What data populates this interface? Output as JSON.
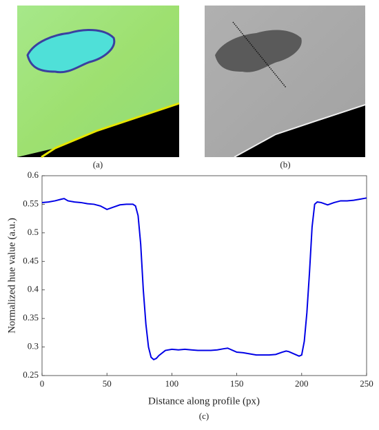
{
  "figure": {
    "panel_labels": [
      "(a)",
      "(b)"
    ]
  },
  "chart_data": {
    "type": "line",
    "caption": "(c)",
    "x_label": "Distance along profile (px)",
    "y_label": "Normalized hue value (a.u.)",
    "x": [
      0,
      5,
      10,
      15,
      17,
      20,
      25,
      30,
      35,
      40,
      45,
      50,
      55,
      60,
      65,
      70,
      72,
      74,
      76,
      78,
      80,
      82,
      84,
      86,
      88,
      90,
      95,
      100,
      105,
      110,
      115,
      120,
      125,
      130,
      135,
      140,
      143,
      145,
      150,
      155,
      160,
      165,
      170,
      175,
      180,
      185,
      188,
      190,
      195,
      198,
      200,
      202,
      204,
      206,
      208,
      210,
      212,
      215,
      220,
      225,
      230,
      235,
      240,
      245,
      250
    ],
    "series": [
      {
        "color": "#0000e6",
        "values": [
          0.553,
          0.554,
          0.556,
          0.559,
          0.56,
          0.556,
          0.554,
          0.553,
          0.551,
          0.55,
          0.547,
          0.541,
          0.545,
          0.549,
          0.55,
          0.55,
          0.547,
          0.53,
          0.48,
          0.4,
          0.34,
          0.3,
          0.282,
          0.278,
          0.28,
          0.285,
          0.294,
          0.296,
          0.295,
          0.296,
          0.295,
          0.294,
          0.294,
          0.294,
          0.295,
          0.297,
          0.298,
          0.296,
          0.291,
          0.29,
          0.288,
          0.286,
          0.286,
          0.286,
          0.287,
          0.291,
          0.293,
          0.292,
          0.287,
          0.284,
          0.286,
          0.31,
          0.36,
          0.43,
          0.51,
          0.55,
          0.554,
          0.553,
          0.549,
          0.553,
          0.556,
          0.556,
          0.557,
          0.559,
          0.561
        ]
      }
    ],
    "xlim": [
      0,
      250
    ],
    "ylim": [
      0.25,
      0.6
    ],
    "xticks": [
      0,
      50,
      100,
      150,
      200,
      250
    ],
    "yticks": [
      0.25,
      0.3,
      0.35,
      0.4,
      0.45,
      0.5,
      0.55,
      0.6
    ]
  }
}
